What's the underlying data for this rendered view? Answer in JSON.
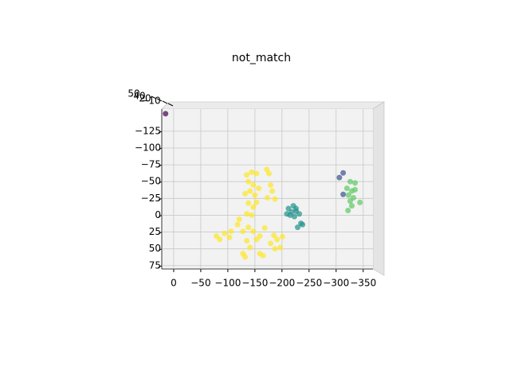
{
  "chart_data": {
    "type": "scatter",
    "title": "not_match",
    "xlim": [
      22,
      -368
    ],
    "ylim": [
      -158,
      80
    ],
    "xticks": [
      0,
      {
        "value": -50,
        "label": "−50"
      },
      {
        "value": -100,
        "label": "−100"
      },
      {
        "value": -150,
        "label": "−150"
      },
      {
        "value": -200,
        "label": "−200"
      },
      {
        "value": -250,
        "label": "−250"
      },
      {
        "value": -300,
        "label": "−300"
      },
      {
        "value": -350,
        "label": "−350"
      }
    ],
    "yticks": [
      {
        "value": -125,
        "label": "−125"
      },
      {
        "value": -100,
        "label": "−100"
      },
      {
        "value": -75,
        "label": "−75"
      },
      {
        "value": -50,
        "label": "−50"
      },
      {
        "value": -25,
        "label": "−25"
      },
      0,
      25,
      50,
      75
    ],
    "zticks": [
      50,
      40,
      20,
      {
        "value": -10,
        "label": "−10"
      }
    ],
    "grid": true,
    "series": [
      {
        "color": "#440154",
        "x": [
          15
        ],
        "y": [
          -151
        ]
      },
      {
        "color": "#3b528b",
        "x": [
          -313,
          -306,
          -313
        ],
        "y": [
          -63,
          -56,
          -31
        ]
      },
      {
        "color": "#21918c",
        "x": [
          -212,
          -221,
          -226,
          -232,
          -215,
          -223,
          -235,
          -229,
          -238,
          -218,
          -209,
          -226
        ],
        "y": [
          -10,
          -14,
          -6,
          -2,
          0,
          2,
          12,
          18,
          14,
          -5,
          -2,
          -10
        ]
      },
      {
        "color": "#5ec962",
        "x": [
          -326,
          -335,
          -320,
          -329,
          -323,
          -332,
          -326,
          -344,
          -329,
          -322,
          -335
        ],
        "y": [
          -50,
          -48,
          -40,
          -36,
          -30,
          -26,
          -21,
          -19,
          -14,
          -7,
          -38
        ]
      },
      {
        "color": "#fde725",
        "x": [
          -135,
          -144,
          -153,
          -172,
          -176,
          -138,
          -147,
          -157,
          -141,
          -150,
          -132,
          -179,
          -182,
          -187,
          -173,
          -138,
          -147,
          -153,
          -135,
          -144,
          -121,
          -118,
          -128,
          -106,
          -94,
          -79,
          -85,
          -103,
          -138,
          -147,
          -153,
          -135,
          -141,
          -128,
          -132,
          -159,
          -165,
          -185,
          -191,
          -201,
          -179,
          -197,
          -187,
          -159,
          -168
        ],
        "y": [
          -60,
          -64,
          -62,
          -68,
          -62,
          -50,
          -45,
          -40,
          -36,
          -30,
          -32,
          -45,
          -36,
          -24,
          -26,
          -18,
          -12,
          -19,
          -2,
          0,
          6,
          14,
          24,
          24,
          27,
          31,
          36,
          33,
          18,
          24,
          36,
          38,
          48,
          57,
          62,
          57,
          60,
          30,
          36,
          32,
          42,
          48,
          50,
          31,
          19
        ]
      }
    ]
  }
}
